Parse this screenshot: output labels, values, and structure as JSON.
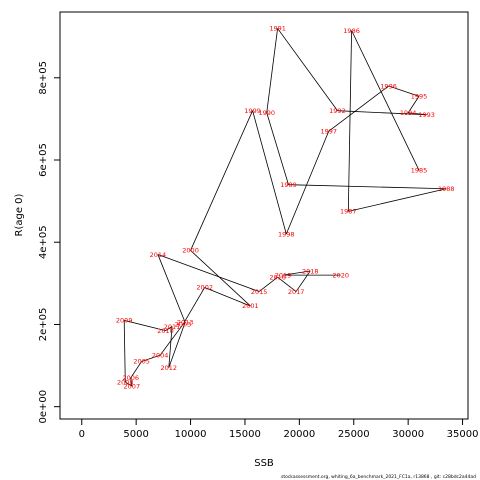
{
  "chart_data": {
    "type": "scatter",
    "connected": true,
    "title": "",
    "xlabel": "SSB",
    "ylabel": "R(age 0)",
    "xlim": [
      -2000,
      35500
    ],
    "ylim": [
      -30000,
      960000
    ],
    "xticks": [
      0,
      5000,
      10000,
      15000,
      20000,
      25000,
      30000,
      35000
    ],
    "yticks": [
      0,
      200000,
      400000,
      600000,
      800000
    ],
    "ytick_labels": [
      "0e+00",
      "2e+05",
      "4e+05",
      "6e+05",
      "8e+05"
    ],
    "grid": false,
    "line_color": "#000000",
    "label_color": "#ff0000",
    "points": [
      {
        "year": "1985",
        "x": 31000,
        "y": 575000
      },
      {
        "year": "1986",
        "x": 24800,
        "y": 915000
      },
      {
        "year": "1987",
        "x": 24500,
        "y": 475000
      },
      {
        "year": "1988",
        "x": 33500,
        "y": 530000
      },
      {
        "year": "1989",
        "x": 19000,
        "y": 540000
      },
      {
        "year": "1990",
        "x": 17000,
        "y": 715000
      },
      {
        "year": "1991",
        "x": 18000,
        "y": 920000
      },
      {
        "year": "1992",
        "x": 23500,
        "y": 720000
      },
      {
        "year": "1993",
        "x": 31700,
        "y": 710000
      },
      {
        "year": "1994",
        "x": 30000,
        "y": 715000
      },
      {
        "year": "1995",
        "x": 31000,
        "y": 755000
      },
      {
        "year": "1996",
        "x": 28200,
        "y": 780000
      },
      {
        "year": "1997",
        "x": 22700,
        "y": 670000
      },
      {
        "year": "1998",
        "x": 18800,
        "y": 420000
      },
      {
        "year": "1999",
        "x": 15700,
        "y": 720000
      },
      {
        "year": "2000",
        "x": 10000,
        "y": 380000
      },
      {
        "year": "2001",
        "x": 15500,
        "y": 245000
      },
      {
        "year": "2002",
        "x": 11300,
        "y": 290000
      },
      {
        "year": "2003",
        "x": 9300,
        "y": 200000
      },
      {
        "year": "2004",
        "x": 7200,
        "y": 125000
      },
      {
        "year": "2005",
        "x": 5500,
        "y": 110000
      },
      {
        "year": "2006",
        "x": 4500,
        "y": 70000
      },
      {
        "year": "2007",
        "x": 4600,
        "y": 50000
      },
      {
        "year": "2008",
        "x": 4000,
        "y": 60000
      },
      {
        "year": "2009",
        "x": 3900,
        "y": 210000
      },
      {
        "year": "2010",
        "x": 7700,
        "y": 185000
      },
      {
        "year": "2011",
        "x": 8300,
        "y": 195000
      },
      {
        "year": "2012",
        "x": 8000,
        "y": 95000
      },
      {
        "year": "2013",
        "x": 9500,
        "y": 205000
      },
      {
        "year": "2014",
        "x": 7000,
        "y": 370000
      },
      {
        "year": "2015",
        "x": 16300,
        "y": 280000
      },
      {
        "year": "2016",
        "x": 18000,
        "y": 315000
      },
      {
        "year": "2017",
        "x": 19700,
        "y": 280000
      },
      {
        "year": "2018",
        "x": 21000,
        "y": 330000
      },
      {
        "year": "2019",
        "x": 18500,
        "y": 320000
      },
      {
        "year": "2020",
        "x": 23800,
        "y": 320000
      }
    ],
    "footnote": "stockassessment.org,  whiting_6a_benchmark_2021_FC1a,  r13868 ,  git: c28bdc2a44ad"
  }
}
